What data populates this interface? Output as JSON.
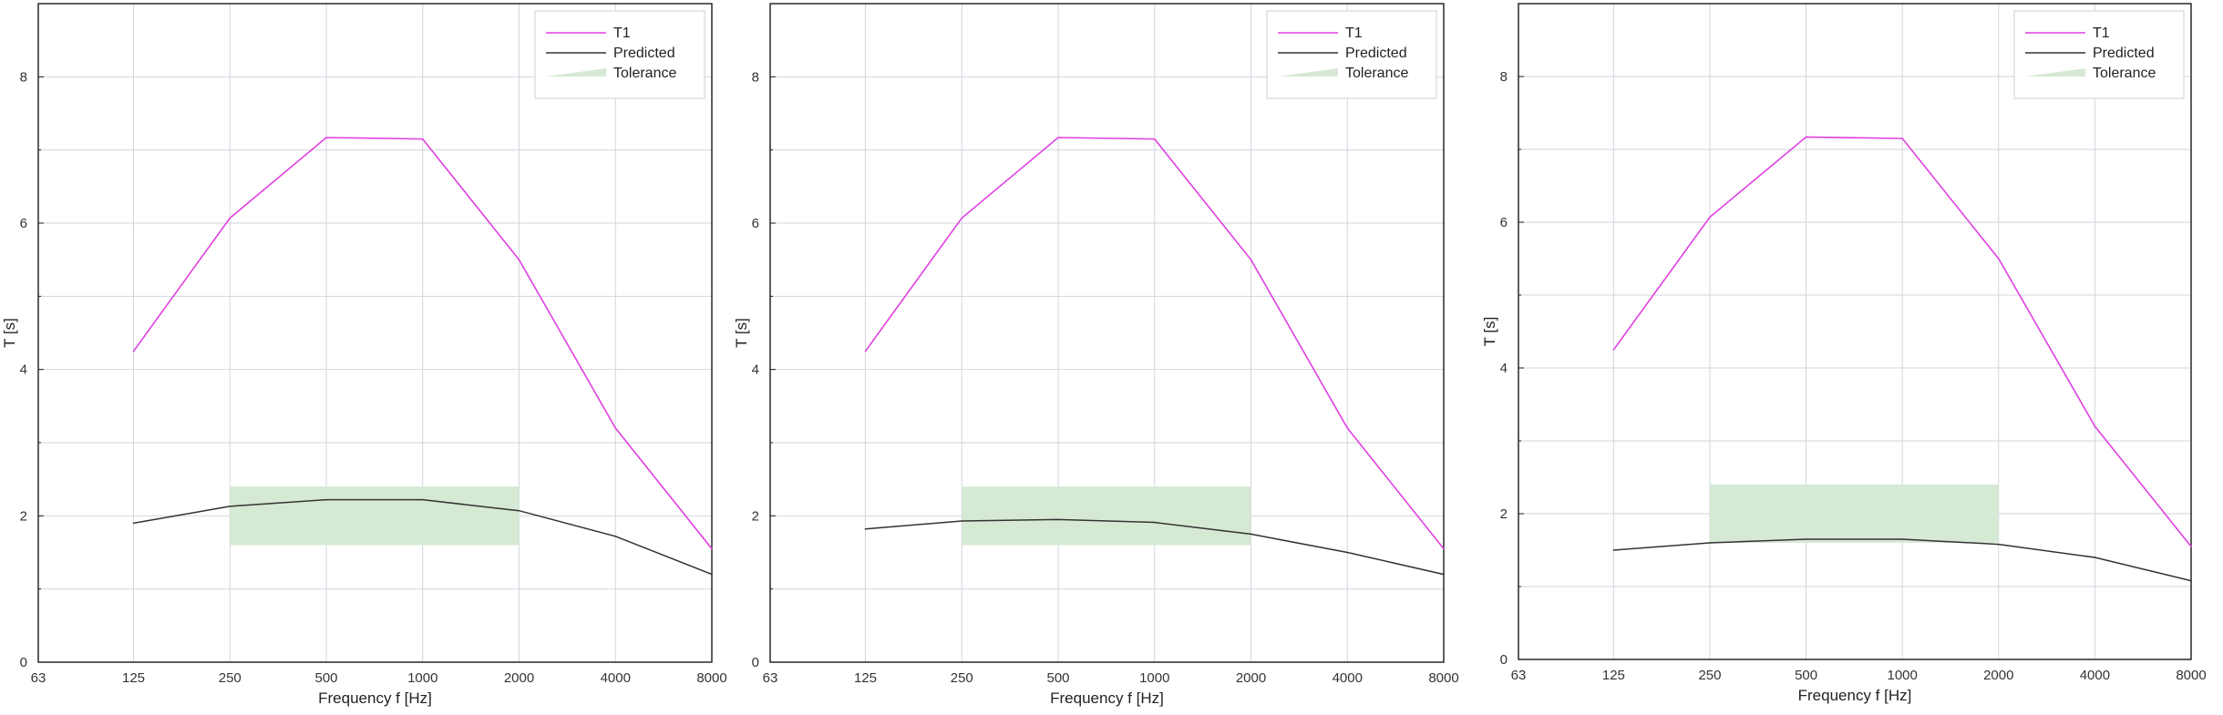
{
  "chart_data": [
    {
      "type": "line",
      "xlabel": "Frequency f [Hz]",
      "ylabel": "T [s]",
      "x_scale": "log2",
      "x_ticks": [
        "63",
        "125",
        "250",
        "500",
        "1000",
        "2000",
        "4000",
        "8000"
      ],
      "y_ticks": [
        "0",
        "2",
        "4",
        "6",
        "8"
      ],
      "ylim": [
        0,
        9
      ],
      "grid": true,
      "legend_position": "top-right",
      "series": [
        {
          "name": "T1",
          "x": [
            125,
            250,
            500,
            1000,
            2000,
            4000,
            8000
          ],
          "values": [
            4.25,
            6.07,
            7.17,
            7.15,
            5.5,
            3.2,
            1.55
          ]
        },
        {
          "name": "Predicted",
          "x": [
            125,
            250,
            500,
            1000,
            2000,
            4000,
            8000
          ],
          "values": [
            1.9,
            2.13,
            2.22,
            2.22,
            2.07,
            1.72,
            1.2
          ]
        }
      ],
      "tolerance": {
        "name": "Tolerance",
        "x_range": [
          250,
          2000
        ],
        "y_range": [
          1.6,
          2.4
        ]
      },
      "colors": {
        "T1": "#e040e0",
        "Predicted": "#333333",
        "Tolerance": "#d6e9d4"
      }
    },
    {
      "type": "line",
      "xlabel": "Frequency f [Hz]",
      "ylabel": "T [s]",
      "x_scale": "log2",
      "x_ticks": [
        "63",
        "125",
        "250",
        "500",
        "1000",
        "2000",
        "4000",
        "8000"
      ],
      "y_ticks": [
        "0",
        "2",
        "4",
        "6",
        "8"
      ],
      "ylim": [
        0,
        9
      ],
      "grid": true,
      "legend_position": "top-right",
      "series": [
        {
          "name": "T1",
          "x": [
            125,
            250,
            500,
            1000,
            2000,
            4000,
            8000
          ],
          "values": [
            4.25,
            6.07,
            7.17,
            7.15,
            5.5,
            3.2,
            1.55
          ]
        },
        {
          "name": "Predicted",
          "x": [
            125,
            250,
            500,
            1000,
            2000,
            4000,
            8000
          ],
          "values": [
            1.82,
            1.93,
            1.95,
            1.91,
            1.75,
            1.5,
            1.2
          ]
        }
      ],
      "tolerance": {
        "name": "Tolerance",
        "x_range": [
          250,
          2000
        ],
        "y_range": [
          1.6,
          2.4
        ]
      },
      "colors": {
        "T1": "#e040e0",
        "Predicted": "#333333",
        "Tolerance": "#d6e9d4"
      }
    },
    {
      "type": "line",
      "xlabel": "Frequency f [Hz]",
      "ylabel": "T [s]",
      "x_scale": "log2",
      "x_ticks": [
        "63",
        "125",
        "250",
        "500",
        "1000",
        "2000",
        "4000",
        "8000"
      ],
      "y_ticks": [
        "0",
        "2",
        "4",
        "6",
        "8"
      ],
      "ylim": [
        0,
        9
      ],
      "grid": true,
      "legend_position": "top-right",
      "series": [
        {
          "name": "T1",
          "x": [
            125,
            250,
            500,
            1000,
            2000,
            4000,
            8000
          ],
          "values": [
            4.25,
            6.07,
            7.17,
            7.15,
            5.5,
            3.2,
            1.55
          ]
        },
        {
          "name": "Predicted",
          "x": [
            125,
            250,
            500,
            1000,
            2000,
            4000,
            8000
          ],
          "values": [
            1.5,
            1.6,
            1.65,
            1.65,
            1.58,
            1.4,
            1.08
          ]
        }
      ],
      "tolerance": {
        "name": "Tolerance",
        "x_range": [
          250,
          2000
        ],
        "y_range": [
          1.6,
          2.4
        ]
      },
      "colors": {
        "T1": "#e040e0",
        "Predicted": "#333333",
        "Tolerance": "#d6e9d4"
      }
    }
  ]
}
